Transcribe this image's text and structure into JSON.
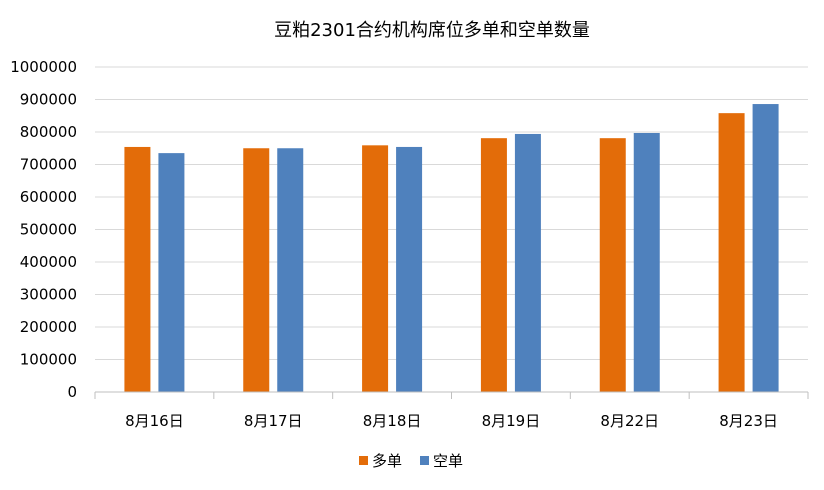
{
  "chart_data": {
    "type": "bar",
    "title": "豆粕2301合约机构席位多单和空单数量",
    "xlabel": "",
    "ylabel": "",
    "categories": [
      "8月16日",
      "8月17日",
      "8月18日",
      "8月19日",
      "8月22日",
      "8月23日"
    ],
    "series": [
      {
        "name": "多单",
        "color": "#E36C09",
        "values": [
          754000,
          750000,
          759000,
          781000,
          781000,
          858000
        ]
      },
      {
        "name": "空单",
        "color": "#4F81BD",
        "values": [
          735000,
          750000,
          754000,
          794000,
          797000,
          886000
        ]
      }
    ],
    "ylim": [
      0,
      1000000
    ],
    "yticks": [
      0,
      100000,
      200000,
      300000,
      400000,
      500000,
      600000,
      700000,
      800000,
      900000,
      1000000
    ],
    "grid": true,
    "legend_position": "bottom"
  }
}
